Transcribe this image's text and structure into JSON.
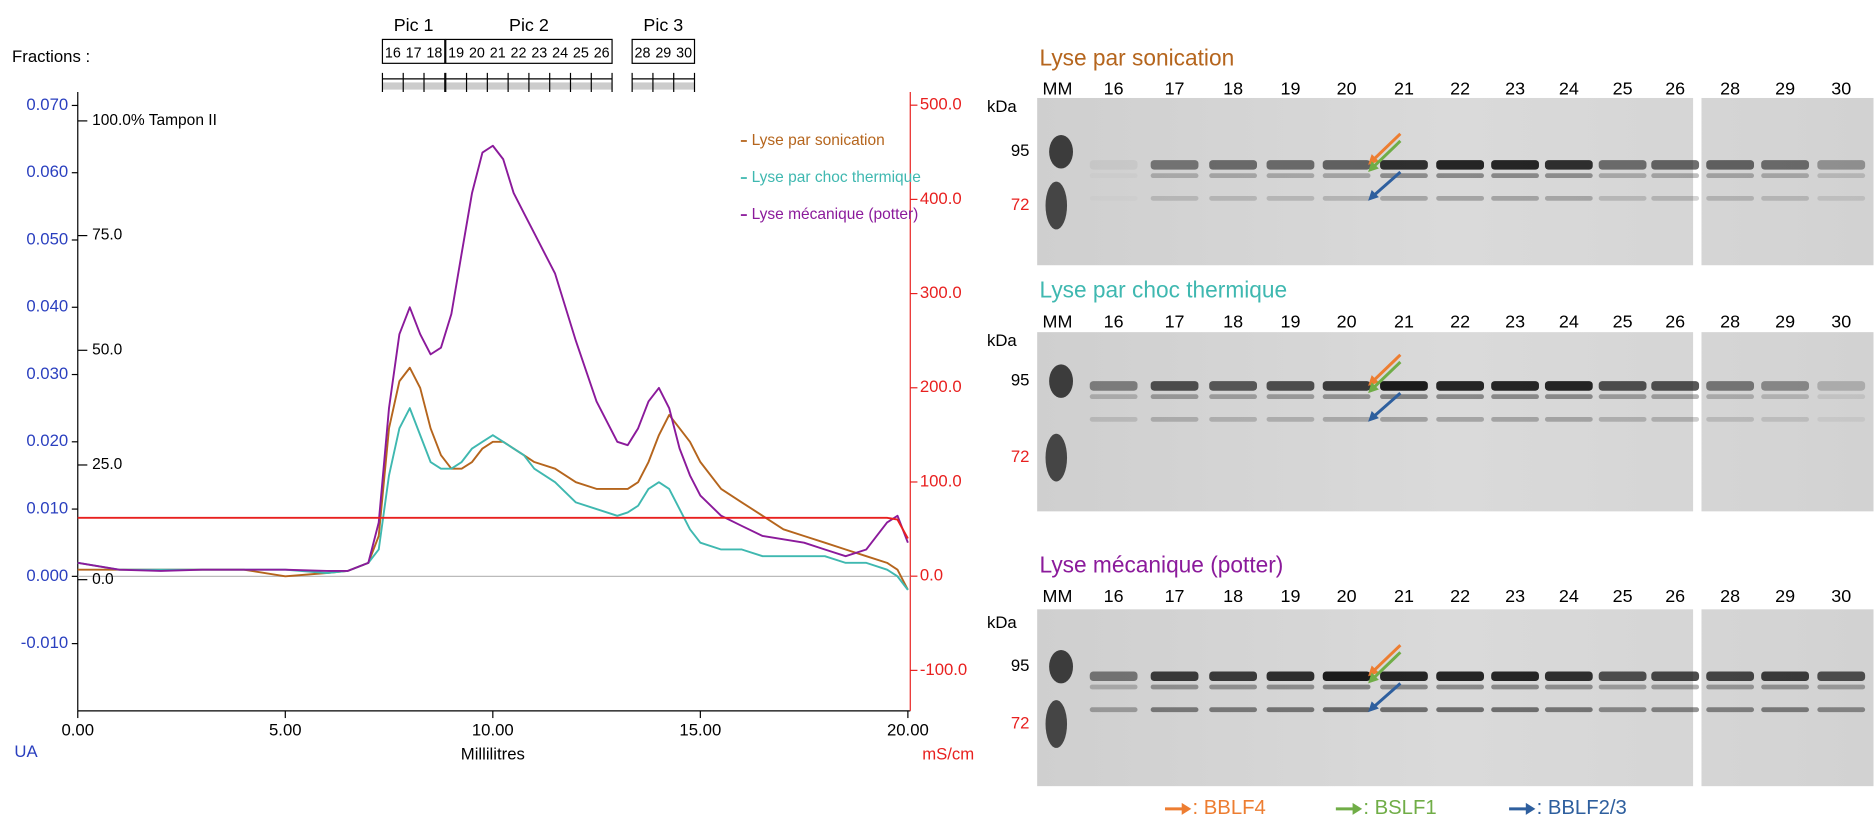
{
  "chart_data": {
    "type": "line",
    "x_label": "Millilitres",
    "y_label": "UA",
    "y2_label": "mS/cm",
    "x": [
      0,
      1,
      2,
      3,
      4,
      5,
      6,
      6.5,
      7,
      7.25,
      7.5,
      7.75,
      8,
      8.25,
      8.5,
      8.75,
      9,
      9.25,
      9.5,
      9.75,
      10,
      10.25,
      10.5,
      10.75,
      11,
      11.5,
      12,
      12.5,
      13,
      13.25,
      13.5,
      13.75,
      14,
      14.25,
      14.5,
      14.75,
      15,
      15.5,
      16,
      16.5,
      17,
      17.5,
      18,
      18.5,
      19,
      19.5,
      19.75,
      20
    ],
    "series": [
      {
        "name": "Lyse par sonication",
        "color": "#b5651d",
        "values": [
          0.001,
          0.001,
          0.001,
          0.001,
          0.001,
          0.0,
          0.0005,
          0.0008,
          0.002,
          0.006,
          0.022,
          0.029,
          0.031,
          0.028,
          0.022,
          0.018,
          0.016,
          0.016,
          0.017,
          0.019,
          0.02,
          0.02,
          0.019,
          0.018,
          0.017,
          0.016,
          0.014,
          0.013,
          0.013,
          0.013,
          0.014,
          0.017,
          0.021,
          0.024,
          0.022,
          0.02,
          0.017,
          0.013,
          0.011,
          0.009,
          0.007,
          0.006,
          0.005,
          0.004,
          0.003,
          0.002,
          0.001,
          -0.002
        ]
      },
      {
        "name": "Lyse par choc thermique",
        "color": "#3fb8b0",
        "values": [
          0.002,
          0.001,
          0.001,
          0.001,
          0.001,
          0.001,
          0.0005,
          0.0008,
          0.002,
          0.004,
          0.015,
          0.022,
          0.025,
          0.021,
          0.017,
          0.016,
          0.016,
          0.017,
          0.019,
          0.02,
          0.021,
          0.02,
          0.019,
          0.018,
          0.016,
          0.014,
          0.011,
          0.01,
          0.009,
          0.0095,
          0.0105,
          0.013,
          0.014,
          0.013,
          0.01,
          0.007,
          0.005,
          0.004,
          0.004,
          0.003,
          0.003,
          0.003,
          0.003,
          0.002,
          0.002,
          0.001,
          0.0,
          -0.002
        ]
      },
      {
        "name": "Lyse mécanique (potter)",
        "color": "#8b1a9b",
        "values": [
          0.002,
          0.001,
          0.0008,
          0.001,
          0.001,
          0.001,
          0.0008,
          0.0008,
          0.002,
          0.008,
          0.025,
          0.036,
          0.04,
          0.036,
          0.033,
          0.034,
          0.039,
          0.048,
          0.057,
          0.063,
          0.064,
          0.062,
          0.057,
          0.054,
          0.051,
          0.045,
          0.035,
          0.026,
          0.02,
          0.0195,
          0.022,
          0.026,
          0.028,
          0.025,
          0.019,
          0.015,
          0.012,
          0.009,
          0.0075,
          0.006,
          0.0055,
          0.005,
          0.004,
          0.003,
          0.004,
          0.008,
          0.009,
          0.005
        ]
      },
      {
        "color": "#e8201f",
        "axis": "y2",
        "values": [
          62,
          62,
          62,
          62,
          62,
          62,
          62,
          62,
          62,
          62,
          62,
          62,
          62,
          62,
          62,
          62,
          62,
          62,
          62,
          62,
          62,
          62,
          62,
          62,
          62,
          62,
          62,
          62,
          62,
          62,
          62,
          62,
          62,
          62,
          62,
          62,
          62,
          62,
          62,
          62,
          62,
          62,
          62,
          62,
          62,
          62,
          60,
          40
        ]
      }
    ],
    "xlim": [
      0,
      20.15
    ],
    "ylim": [
      -0.02,
      0.072
    ],
    "y2lim": [
      -143,
      514
    ],
    "y3lim": [
      -28.6,
      106.3
    ],
    "xticks": [
      {
        "value": 0,
        "label": "0.00"
      },
      {
        "value": 5,
        "label": "5.00"
      },
      {
        "value": 10,
        "label": "10.00"
      },
      {
        "value": 15,
        "label": "15.00"
      },
      {
        "value": 20,
        "label": "20.00"
      }
    ],
    "yticks": [
      {
        "value": -0.01,
        "label": "-0.010"
      },
      {
        "value": 0,
        "label": "0.000"
      },
      {
        "value": 0.01,
        "label": "0.010"
      },
      {
        "value": 0.02,
        "label": "0.020"
      },
      {
        "value": 0.03,
        "label": "0.030"
      },
      {
        "value": 0.04,
        "label": "0.040"
      },
      {
        "value": 0.05,
        "label": "0.050"
      },
      {
        "value": 0.06,
        "label": "0.060"
      },
      {
        "value": 0.07,
        "label": "0.070"
      }
    ],
    "y2ticks": [
      {
        "value": -100,
        "label": "-100.0"
      },
      {
        "value": 0,
        "label": "0.0"
      },
      {
        "value": 100,
        "label": "100.0"
      },
      {
        "value": 200,
        "label": "200.0"
      },
      {
        "value": 300,
        "label": "300.0"
      },
      {
        "value": 400,
        "label": "400.0"
      },
      {
        "value": 500,
        "label": "500.0"
      }
    ],
    "y3ticks": [
      {
        "value": 0,
        "label": "0.0"
      },
      {
        "value": 25,
        "label": "25.0"
      },
      {
        "value": 50,
        "label": "50.0"
      },
      {
        "value": 75,
        "label": "75.0"
      },
      {
        "value": 100,
        "label": "100.0% Tampon II"
      }
    ],
    "legend": "upper right",
    "grid": false
  },
  "fraction_bar": {
    "title": "Fractions :",
    "peaks": [
      {
        "label": "Pic 1",
        "fractions": [
          "16",
          "17",
          "18"
        ]
      },
      {
        "label": "Pic 2",
        "fractions": [
          "19",
          "20",
          "21",
          "22",
          "23",
          "24",
          "25",
          "26"
        ]
      },
      {
        "label": "Pic 3",
        "fractions": [
          "28",
          "29",
          "30"
        ]
      }
    ]
  },
  "gels": [
    {
      "title": "Lyse par sonication",
      "color": "#b5651d",
      "lanes": [
        "MM",
        "16",
        "17",
        "18",
        "19",
        "20",
        "21",
        "22",
        "23",
        "24",
        "25",
        "26",
        "28",
        "29",
        "30"
      ],
      "unit": "kDa",
      "markers": [
        95,
        72
      ]
    },
    {
      "title": "Lyse par choc thermique",
      "color": "#3fb8b0",
      "lanes": [
        "MM",
        "16",
        "17",
        "18",
        "19",
        "20",
        "21",
        "22",
        "23",
        "24",
        "25",
        "26",
        "28",
        "29",
        "30"
      ],
      "unit": "kDa",
      "markers": [
        95,
        72
      ]
    },
    {
      "title": "Lyse mécanique (potter)",
      "color": "#8b1a9b",
      "lanes": [
        "MM",
        "16",
        "17",
        "18",
        "19",
        "20",
        "21",
        "22",
        "23",
        "24",
        "25",
        "26",
        "28",
        "29",
        "30"
      ],
      "unit": "kDa",
      "markers": [
        95,
        72
      ]
    }
  ],
  "gel_legend": [
    {
      "label": ": BBLF4",
      "color": "#ed7d31"
    },
    {
      "label": ": BSLF1",
      "color": "#70ad47"
    },
    {
      "label": ": BBLF2/3",
      "color": "#2e5f9e"
    }
  ]
}
